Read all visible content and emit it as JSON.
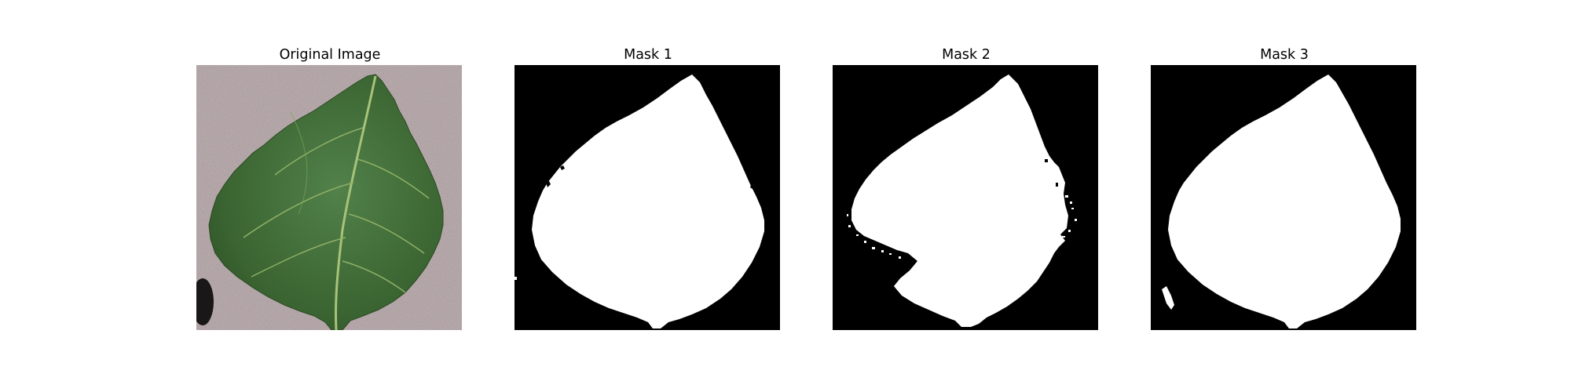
{
  "figure": {
    "panels": [
      {
        "title": "Original Image",
        "kind": "photo"
      },
      {
        "title": "Mask 1",
        "kind": "mask"
      },
      {
        "title": "Mask 2",
        "kind": "mask"
      },
      {
        "title": "Mask 3",
        "kind": "mask"
      }
    ]
  },
  "colors": {
    "background": "#ffffff",
    "mask_background": "#000000",
    "mask_foreground": "#ffffff",
    "photo_background": "#a89a9c",
    "leaf_green": "#3f6e35",
    "leaf_vein": "#a8c27a"
  }
}
